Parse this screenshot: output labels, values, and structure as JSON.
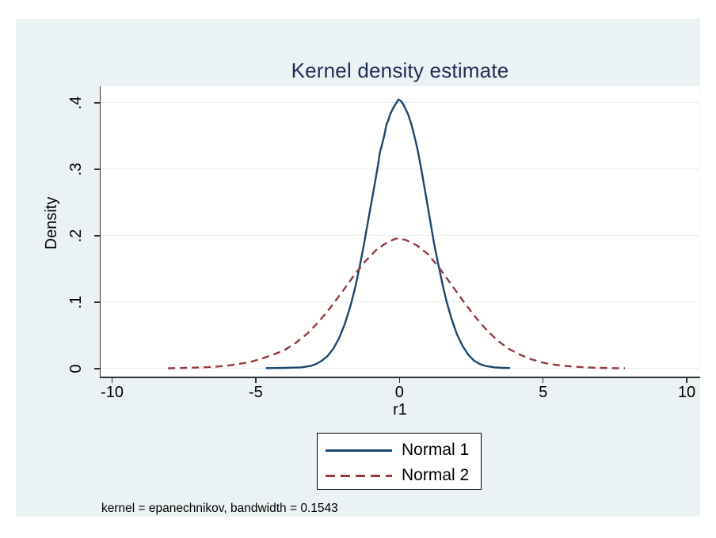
{
  "title": {
    "text": "Kernel density estimate",
    "color": "#1e2d53"
  },
  "note": {
    "text": "kernel = epanechnikov, bandwidth = 0.1543"
  },
  "axes": {
    "x_label": "r1",
    "y_label": "Density",
    "x_ticks": [
      {
        "v": -10,
        "label": "-10"
      },
      {
        "v": -5,
        "label": "-5"
      },
      {
        "v": 0,
        "label": "0"
      },
      {
        "v": 5,
        "label": "5"
      },
      {
        "v": 10,
        "label": "10"
      }
    ],
    "y_ticks": [
      {
        "v": 0,
        "label": "0"
      },
      {
        "v": 0.1,
        "label": ".1"
      },
      {
        "v": 0.2,
        "label": ".2"
      },
      {
        "v": 0.3,
        "label": ".3"
      },
      {
        "v": 0.4,
        "label": ".4"
      }
    ]
  },
  "legend": {
    "items": [
      {
        "label": "Normal 1",
        "color": "#1a476f",
        "style": "solid"
      },
      {
        "label": "Normal 2",
        "color": "#953a3e",
        "style": "dashed"
      }
    ]
  },
  "colors": {
    "background": "#eaf2f3",
    "plot_background": "#ffffff",
    "gridline": "#e4eef2",
    "axis": "#303030",
    "title": "#1e2d53",
    "series1": "#1a476f",
    "series2": "#953a3e"
  },
  "chart_data": {
    "type": "line",
    "title": "Kernel density estimate",
    "xlabel": "r1",
    "ylabel": "Density",
    "note": "kernel = epanechnikov, bandwidth = 0.1543",
    "xlim": [
      -10.4,
      10.44
    ],
    "ylim": [
      -0.0131,
      0.425
    ],
    "grid": "horizontal",
    "legend_position": "bottom-center",
    "series": [
      {
        "name": "Normal 1",
        "color": "#1a476f",
        "dash": null,
        "width": 2.4,
        "points": [
          [
            -4.65,
            0.0008
          ],
          [
            -4.3,
            0.001
          ],
          [
            -4.0,
            0.0012
          ],
          [
            -3.7,
            0.0015
          ],
          [
            -3.4,
            0.002
          ],
          [
            -3.1,
            0.004
          ],
          [
            -2.9,
            0.007
          ],
          [
            -2.7,
            0.012
          ],
          [
            -2.5,
            0.019
          ],
          [
            -2.3,
            0.03
          ],
          [
            -2.1,
            0.046
          ],
          [
            -1.9,
            0.067
          ],
          [
            -1.7,
            0.095
          ],
          [
            -1.55,
            0.12
          ],
          [
            -1.4,
            0.15
          ],
          [
            -1.25,
            0.183
          ],
          [
            -1.1,
            0.22
          ],
          [
            -0.95,
            0.256
          ],
          [
            -0.85,
            0.28
          ],
          [
            -0.75,
            0.305
          ],
          [
            -0.68,
            0.325
          ],
          [
            -0.6,
            0.338
          ],
          [
            -0.52,
            0.352
          ],
          [
            -0.45,
            0.368
          ],
          [
            -0.4,
            0.372
          ],
          [
            -0.32,
            0.383
          ],
          [
            -0.22,
            0.392
          ],
          [
            -0.12,
            0.399
          ],
          [
            -0.03,
            0.405
          ],
          [
            0.05,
            0.403
          ],
          [
            0.12,
            0.399
          ],
          [
            0.2,
            0.392
          ],
          [
            0.3,
            0.383
          ],
          [
            0.4,
            0.37
          ],
          [
            0.5,
            0.354
          ],
          [
            0.62,
            0.332
          ],
          [
            0.75,
            0.303
          ],
          [
            0.9,
            0.266
          ],
          [
            1.05,
            0.228
          ],
          [
            1.2,
            0.19
          ],
          [
            1.35,
            0.158
          ],
          [
            1.5,
            0.127
          ],
          [
            1.65,
            0.1
          ],
          [
            1.8,
            0.077
          ],
          [
            2.0,
            0.052
          ],
          [
            2.2,
            0.034
          ],
          [
            2.4,
            0.021
          ],
          [
            2.6,
            0.012
          ],
          [
            2.8,
            0.007
          ],
          [
            3.0,
            0.004
          ],
          [
            3.3,
            0.002
          ],
          [
            3.6,
            0.0012
          ],
          [
            3.85,
            0.001
          ]
        ]
      },
      {
        "name": "Normal 2",
        "color": "#953a3e",
        "dash": "9,6",
        "width": 2.4,
        "points": [
          [
            -8.05,
            0.0006
          ],
          [
            -7.6,
            0.001
          ],
          [
            -7.2,
            0.0015
          ],
          [
            -6.8,
            0.002
          ],
          [
            -6.4,
            0.003
          ],
          [
            -6.0,
            0.0045
          ],
          [
            -5.6,
            0.007
          ],
          [
            -5.2,
            0.01
          ],
          [
            -4.8,
            0.015
          ],
          [
            -4.4,
            0.021
          ],
          [
            -4.0,
            0.028
          ],
          [
            -3.6,
            0.039
          ],
          [
            -3.2,
            0.053
          ],
          [
            -2.8,
            0.071
          ],
          [
            -2.4,
            0.092
          ],
          [
            -2.0,
            0.115
          ],
          [
            -1.6,
            0.139
          ],
          [
            -1.2,
            0.161
          ],
          [
            -0.8,
            0.179
          ],
          [
            -0.4,
            0.191
          ],
          [
            -0.1,
            0.196
          ],
          [
            0.2,
            0.194
          ],
          [
            0.6,
            0.186
          ],
          [
            1.0,
            0.172
          ],
          [
            1.4,
            0.151
          ],
          [
            1.8,
            0.127
          ],
          [
            2.2,
            0.103
          ],
          [
            2.6,
            0.08
          ],
          [
            3.0,
            0.06
          ],
          [
            3.4,
            0.043
          ],
          [
            3.8,
            0.03
          ],
          [
            4.2,
            0.021
          ],
          [
            4.6,
            0.014
          ],
          [
            5.0,
            0.009
          ],
          [
            5.4,
            0.006
          ],
          [
            5.8,
            0.004
          ],
          [
            6.2,
            0.0027
          ],
          [
            6.6,
            0.0018
          ],
          [
            7.0,
            0.0012
          ],
          [
            7.4,
            0.0008
          ],
          [
            7.85,
            0.0006
          ]
        ]
      }
    ]
  }
}
